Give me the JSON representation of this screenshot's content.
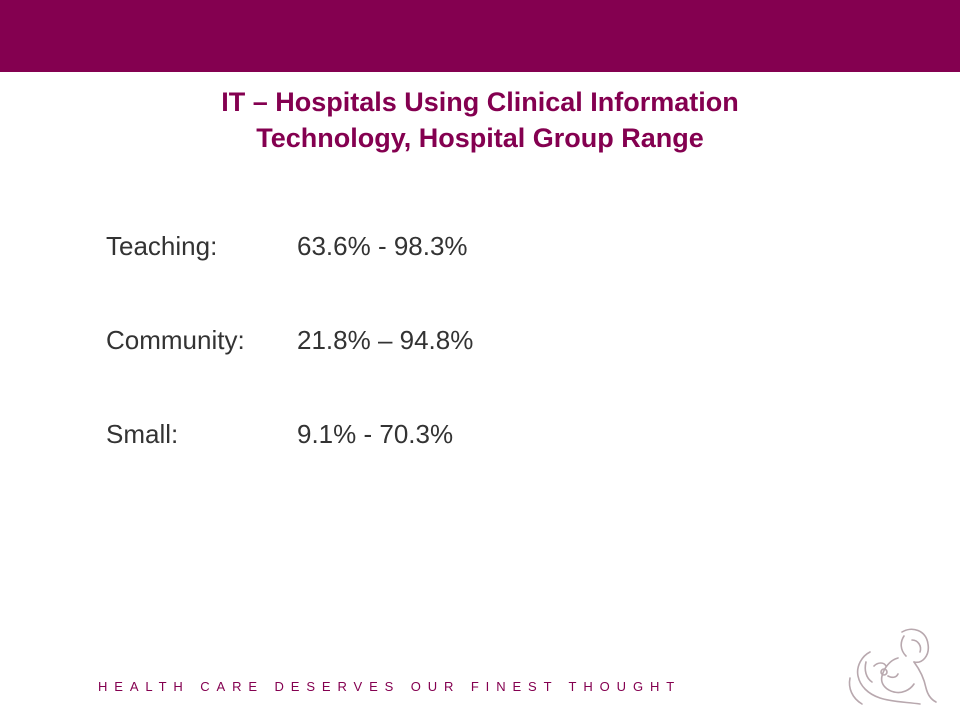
{
  "slide": {
    "title_line1": "IT – Hospitals Using Clinical Information",
    "title_line2": "Technology, Hospital Group Range",
    "rows": [
      {
        "label": "Teaching:",
        "value": "63.6% - 98.3%"
      },
      {
        "label": "Community:",
        "value": "21.8% – 94.8%"
      },
      {
        "label": "Small:",
        "value": "9.1% - 70.3%"
      }
    ],
    "tagline": "HEALTH CARE DESERVES OUR FINEST THOUGHT",
    "logo_icon": "mother-and-child-line-art-icon"
  },
  "colors": {
    "brand": "#840050",
    "body_text": "#333333",
    "logo_stroke": "#b8a8ae"
  }
}
